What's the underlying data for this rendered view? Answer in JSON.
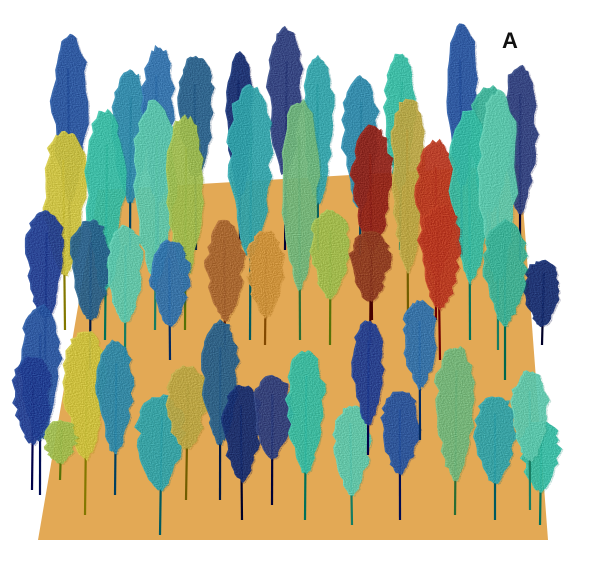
{
  "figure": {
    "panel_label": "A",
    "colors": {
      "background": "#ffffff",
      "ground": "#E3A955",
      "ground_shadow": "#D1943F",
      "trunk": "#1E3552",
      "palette": [
        "#1C3F8F",
        "#23529B",
        "#2E6FA8",
        "#2A86A6",
        "#2FA0A6",
        "#35B7A0",
        "#5CC3A9",
        "#3BAE94",
        "#6FB37A",
        "#9CB84D",
        "#C9BE3F",
        "#B7A344",
        "#C98F3B",
        "#A4642E",
        "#8B3B1B",
        "#8F1E12",
        "#B5371B",
        "#0F2A6E",
        "#2B3F7B",
        "#245E88"
      ]
    }
  }
}
